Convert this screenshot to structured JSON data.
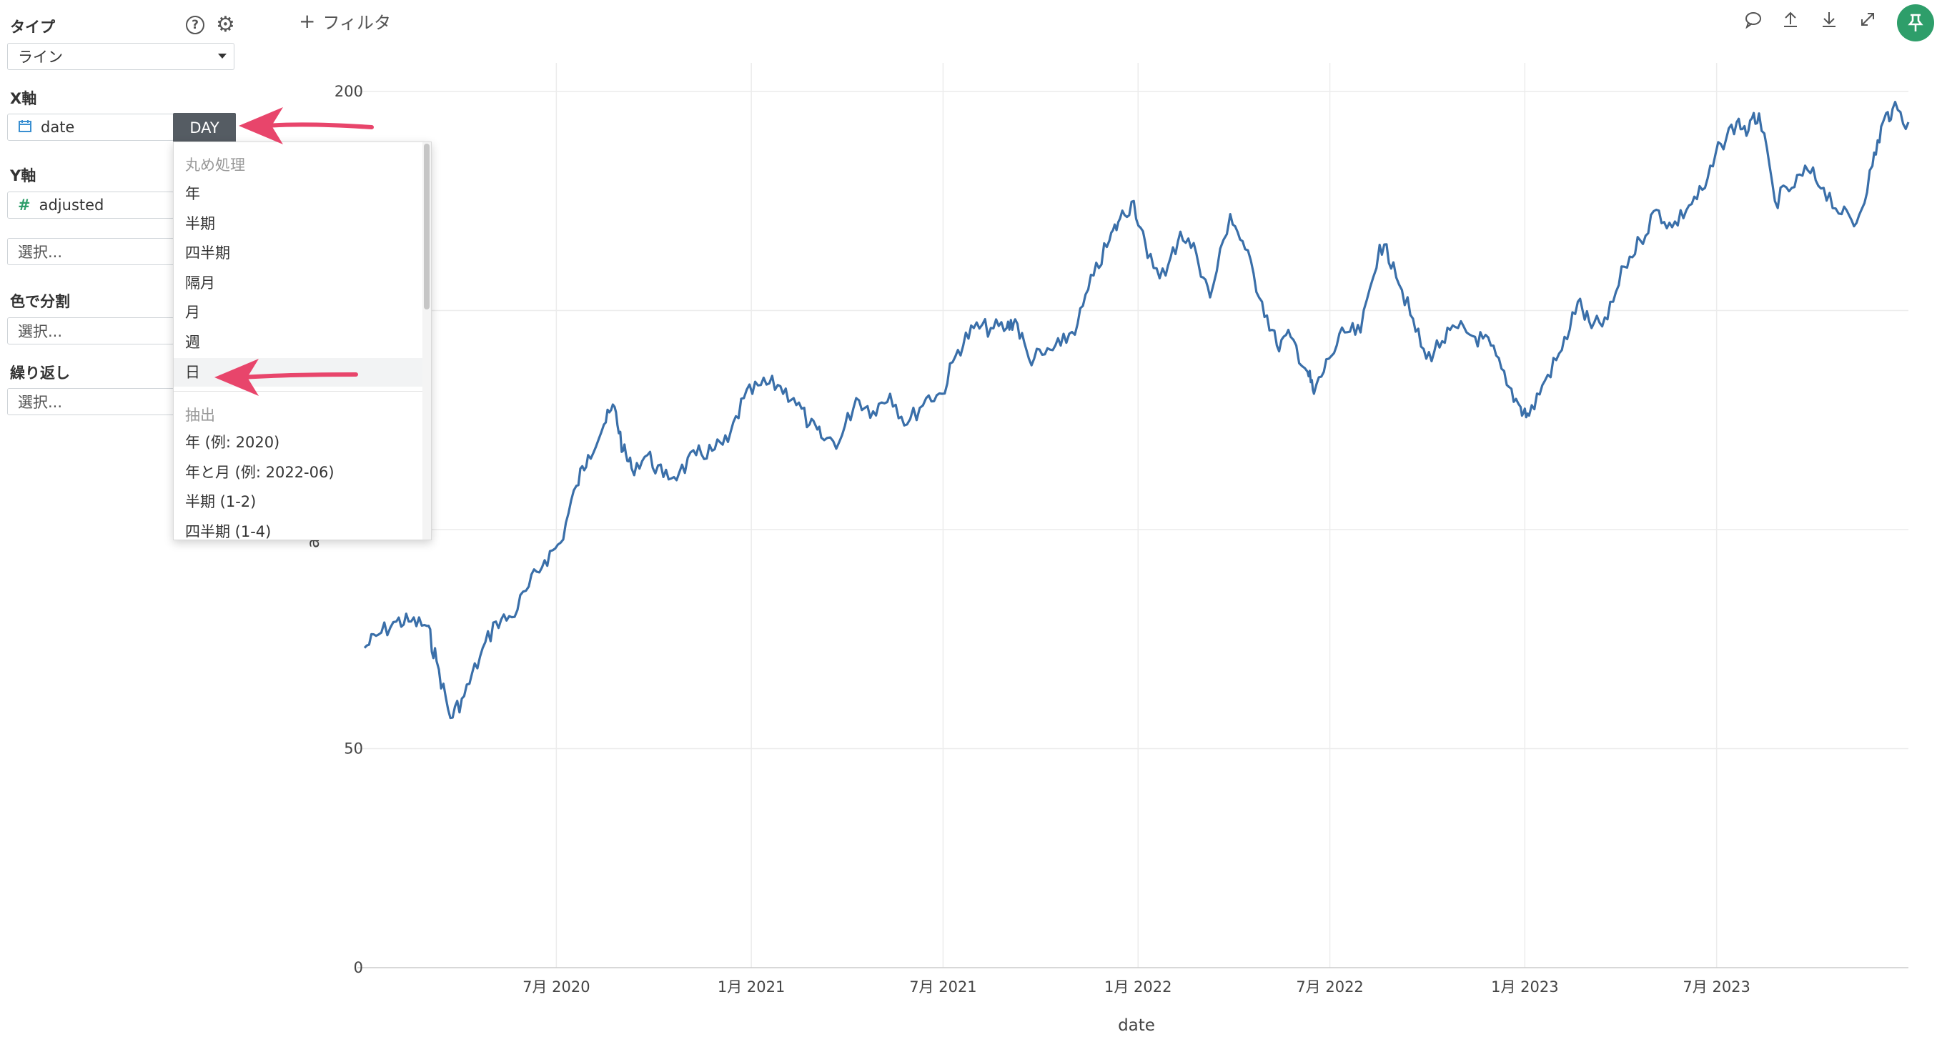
{
  "panel": {
    "type_label": "タイプ",
    "type_value": "ライン",
    "help_icon": "?",
    "x_axis_label": "X軸",
    "x_field": "date",
    "x_badge": "DAY",
    "y_axis_label": "Y軸",
    "y_field": "adjusted",
    "y_extra_placeholder": "選択...",
    "color_label": "色で分割",
    "color_placeholder": "選択...",
    "repeat_label": "繰り返し",
    "repeat_placeholder": "選択..."
  },
  "dropdown": {
    "group_rounding": "丸め処理",
    "rounding_items": [
      "年",
      "半期",
      "四半期",
      "隔月",
      "月",
      "週",
      "日"
    ],
    "selected_index": 6,
    "group_extract": "抽出",
    "extract_items": [
      "年 (例: 2020)",
      "年と月 (例: 2022-06)",
      "半期 (1-2)",
      "四半期 (1-4)"
    ]
  },
  "toolbar": {
    "filter_label": "フィルタ",
    "icons": [
      "comment-icon",
      "upload-icon",
      "download-icon",
      "expand-icon",
      "pin-icon"
    ]
  },
  "colors": {
    "line": "#3a6fa9",
    "arrow": "#e8456b",
    "pin_bg": "#2e9e6a",
    "grid": "#ececec"
  },
  "chart_data": {
    "type": "line",
    "xlabel": "date",
    "ylabel": "a",
    "y_ticks": [
      "0",
      "50",
      "200"
    ],
    "x_ticks": [
      "7月 2020",
      "1月 2021",
      "7月 2021",
      "1月 2022",
      "7月 2022",
      "1月 2023",
      "7月 2023"
    ],
    "x_range": [
      "2020-01-02",
      "2023-12-29"
    ],
    "ylim": [
      0,
      200
    ],
    "series": [
      {
        "x": [
          "2020-01-02",
          "2020-01-15",
          "2020-02-01",
          "2020-02-15",
          "2020-03-01",
          "2020-03-10",
          "2020-03-23",
          "2020-04-05",
          "2020-04-20",
          "2020-05-05",
          "2020-05-20",
          "2020-06-05",
          "2020-06-20",
          "2020-07-05",
          "2020-07-20",
          "2020-07-31",
          "2020-08-15",
          "2020-08-25",
          "2020-09-02",
          "2020-09-10",
          "2020-09-25",
          "2020-10-10",
          "2020-10-25",
          "2020-11-10",
          "2020-11-25",
          "2020-12-10",
          "2020-12-25",
          "2021-01-10",
          "2021-01-26",
          "2021-02-10",
          "2021-02-25",
          "2021-03-08",
          "2021-03-25",
          "2021-04-10",
          "2021-04-26",
          "2021-05-12",
          "2021-05-28",
          "2021-06-15",
          "2021-06-30",
          "2021-07-15",
          "2021-07-30",
          "2021-08-15",
          "2021-08-30",
          "2021-09-07",
          "2021-09-20",
          "2021-10-05",
          "2021-10-20",
          "2021-11-05",
          "2021-11-20",
          "2021-12-05",
          "2021-12-15",
          "2021-12-28",
          "2022-01-10",
          "2022-01-27",
          "2022-02-10",
          "2022-02-25",
          "2022-03-10",
          "2022-03-29",
          "2022-04-12",
          "2022-04-28",
          "2022-05-12",
          "2022-05-25",
          "2022-06-10",
          "2022-06-16",
          "2022-06-30",
          "2022-07-15",
          "2022-07-30",
          "2022-08-17",
          "2022-08-30",
          "2022-09-15",
          "2022-09-30",
          "2022-10-15",
          "2022-10-30",
          "2022-11-15",
          "2022-11-30",
          "2022-12-15",
          "2022-12-28",
          "2023-01-05",
          "2023-01-20",
          "2023-02-05",
          "2023-02-20",
          "2023-03-05",
          "2023-03-20",
          "2023-04-05",
          "2023-04-20",
          "2023-05-05",
          "2023-05-20",
          "2023-06-05",
          "2023-06-20",
          "2023-07-05",
          "2023-07-20",
          "2023-07-31",
          "2023-08-10",
          "2023-08-25",
          "2023-09-10",
          "2023-09-25",
          "2023-10-10",
          "2023-10-27",
          "2023-11-10",
          "2023-11-25",
          "2023-12-05",
          "2023-12-14",
          "2023-12-29"
        ],
        "values": [
          73,
          76,
          79,
          79,
          78,
          70,
          57,
          62,
          71,
          79,
          80,
          87,
          93,
          97,
          110,
          117,
          124,
          128,
          118,
          114,
          117,
          112,
          113,
          117,
          118,
          120,
          130,
          133,
          133,
          130,
          124,
          121,
          120,
          130,
          127,
          131,
          124,
          130,
          131,
          141,
          146,
          146,
          146,
          148,
          139,
          140,
          142,
          147,
          158,
          166,
          171,
          175,
          162,
          158,
          168,
          163,
          153,
          172,
          164,
          152,
          142,
          144,
          136,
          131,
          139,
          145,
          145,
          165,
          161,
          149,
          139,
          143,
          146,
          144,
          142,
          133,
          128,
          126,
          134,
          141,
          152,
          146,
          148,
          160,
          166,
          173,
          169,
          174,
          178,
          188,
          193,
          191,
          195,
          175,
          178,
          182,
          178,
          172,
          170,
          183,
          193,
          196,
          193
        ]
      }
    ]
  }
}
